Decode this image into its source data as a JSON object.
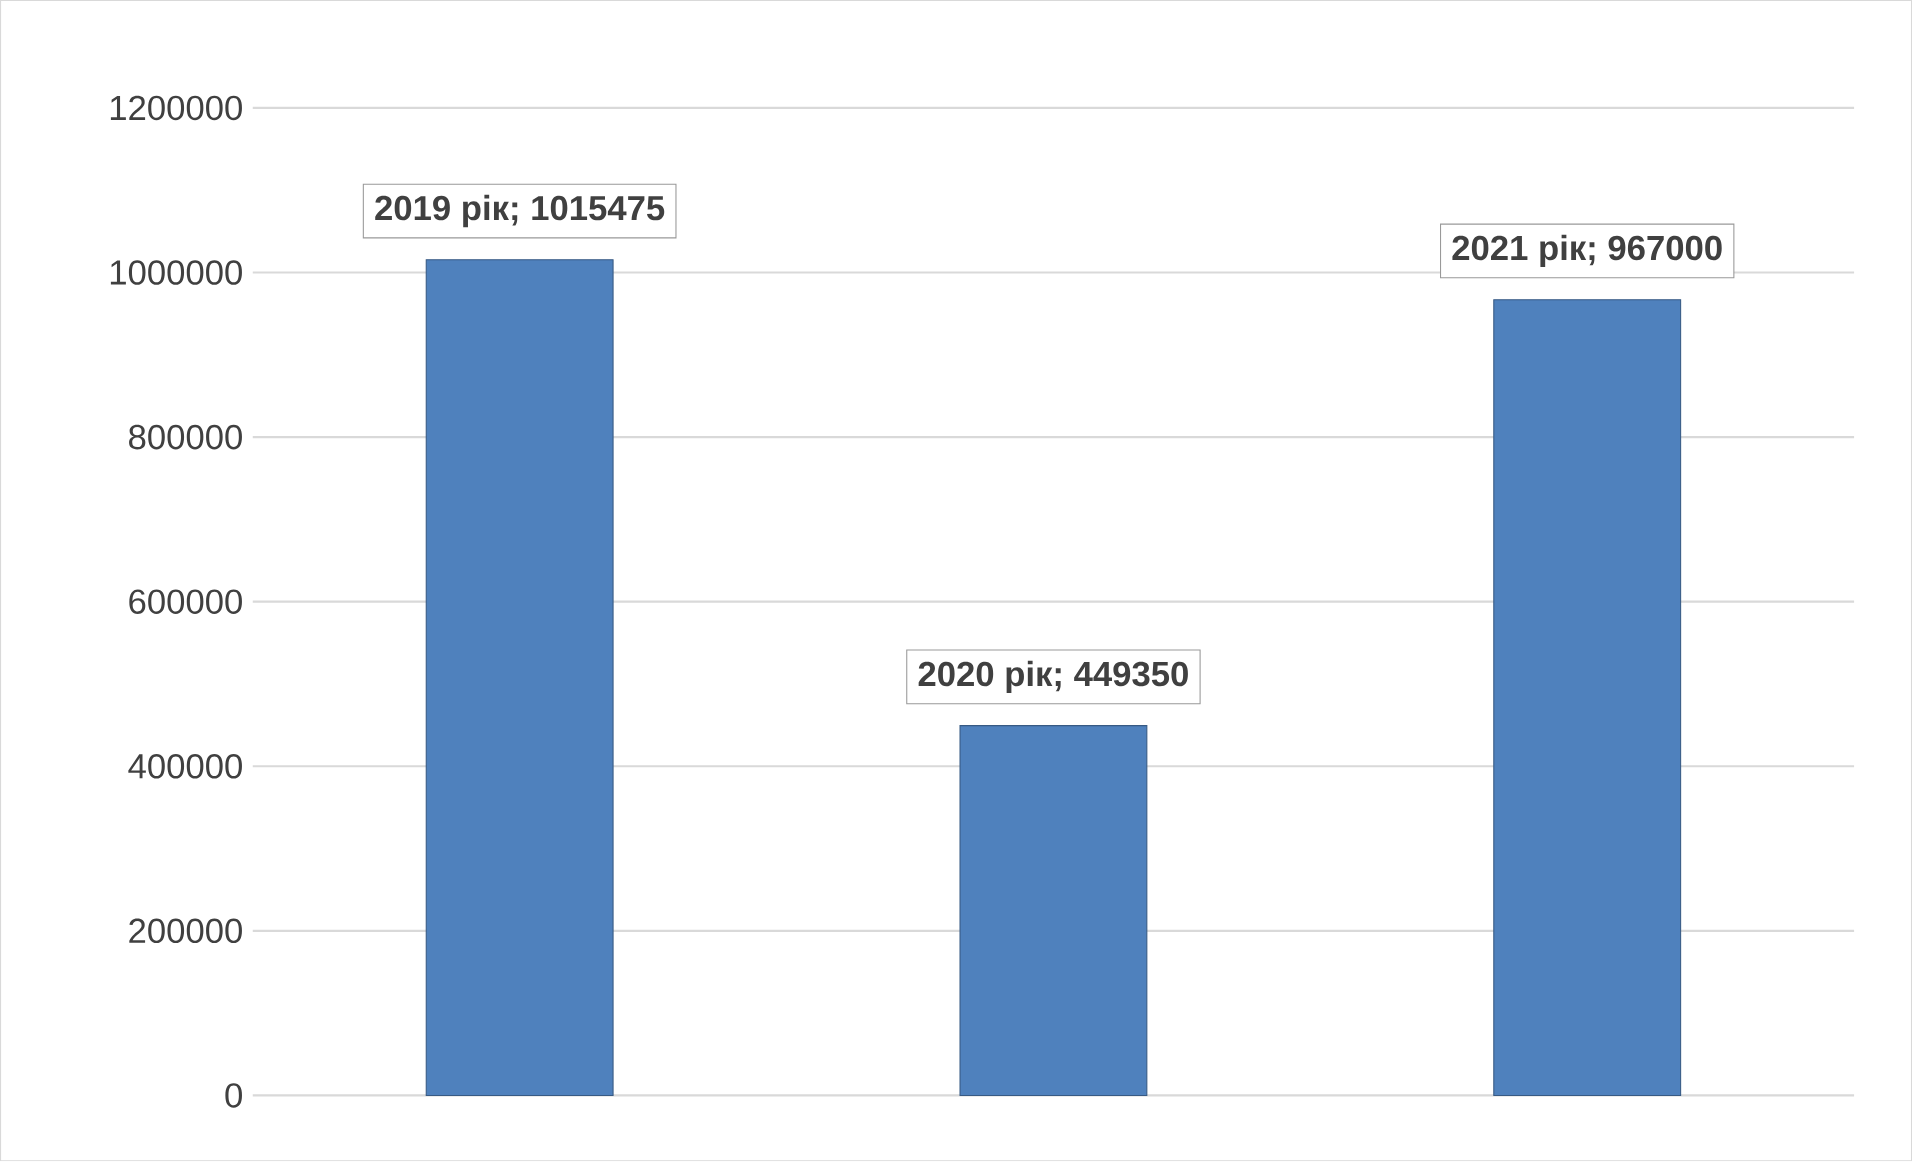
{
  "chart_data": {
    "type": "bar",
    "categories": [
      null,
      null,
      null
    ],
    "values": [
      1015475,
      449350,
      967000
    ],
    "value_labels": [
      "2019  рік; 1015475",
      "2020 рік; 449350",
      "2021 рік; 967000"
    ],
    "color": "#4f81bd",
    "ylim": [
      0,
      1200000
    ],
    "yticks": [
      0,
      200000,
      400000,
      600000,
      800000,
      1000000,
      1200000
    ],
    "grid": "y"
  }
}
